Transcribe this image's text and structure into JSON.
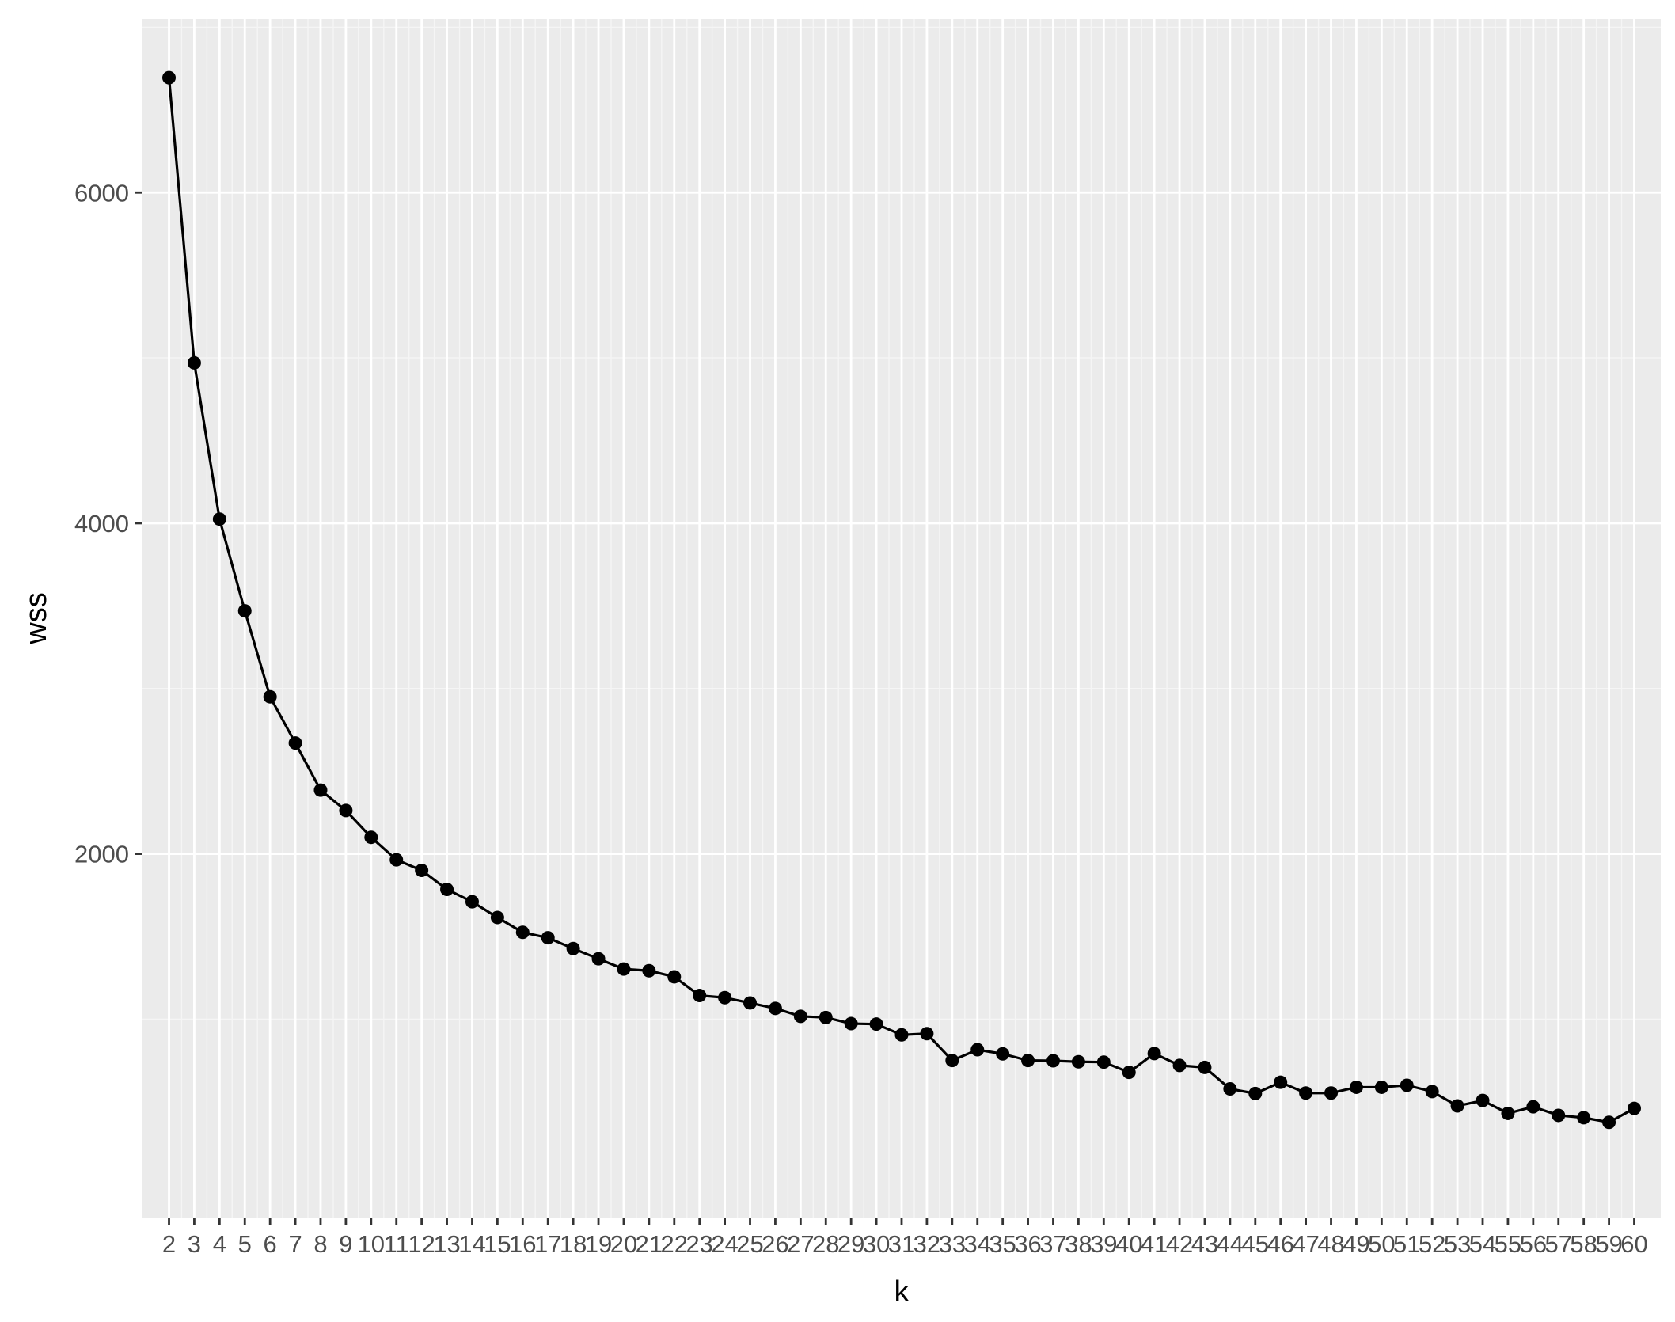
{
  "chart_data": {
    "type": "line",
    "xlabel": "k",
    "ylabel": "wss",
    "x": [
      2,
      3,
      4,
      5,
      6,
      7,
      8,
      9,
      10,
      11,
      12,
      13,
      14,
      15,
      16,
      17,
      18,
      19,
      20,
      21,
      22,
      23,
      24,
      25,
      26,
      27,
      28,
      29,
      30,
      31,
      32,
      33,
      34,
      35,
      36,
      37,
      38,
      39,
      40,
      41,
      42,
      43,
      44,
      45,
      46,
      47,
      48,
      49,
      50,
      51,
      52,
      53,
      54,
      55,
      56,
      57,
      58,
      59,
      60
    ],
    "x_tick_labels": [
      "2",
      "3",
      "4",
      "5",
      "6",
      "7",
      "8",
      "9",
      "10",
      "11",
      "12",
      "13",
      "14",
      "15",
      "16",
      "17",
      "18",
      "19",
      "20",
      "21",
      "22",
      "23",
      "24",
      "25",
      "26",
      "27",
      "28",
      "29",
      "30",
      "31",
      "32",
      "33",
      "34",
      "35",
      "36",
      "37",
      "38",
      "39",
      "40",
      "41",
      "42",
      "43",
      "44",
      "45",
      "46",
      "47",
      "48",
      "49",
      "50",
      "51",
      "52",
      "53",
      "54",
      "55",
      "56",
      "57",
      "58",
      "59",
      "60"
    ],
    "values": [
      6695,
      4970,
      4025,
      3470,
      2950,
      2670,
      2385,
      2262,
      2100,
      1964,
      1900,
      1785,
      1710,
      1615,
      1525,
      1492,
      1427,
      1365,
      1303,
      1293,
      1256,
      1143,
      1130,
      1098,
      1065,
      1017,
      1010,
      973,
      970,
      905,
      912,
      750,
      815,
      790,
      750,
      748,
      742,
      740,
      678,
      792,
      720,
      708,
      578,
      550,
      618,
      553,
      553,
      588,
      588,
      600,
      562,
      475,
      508,
      430,
      470,
      418,
      404,
      376,
      460
    ],
    "yticks": [
      2000,
      4000,
      6000
    ],
    "ytick_labels": [
      "2000",
      "4000",
      "6000"
    ],
    "ylim": [
      -200,
      7050
    ],
    "xlim": [
      0.95,
      61.05
    ],
    "grid": true,
    "colors": {
      "panel_background": "#ebebeb",
      "grid_major": "#ffffff",
      "grid_minor": "#f5f5f5",
      "line": "#000000",
      "point": "#000000",
      "tick_text": "#4d4d4d",
      "axis_title": "#000000"
    }
  }
}
